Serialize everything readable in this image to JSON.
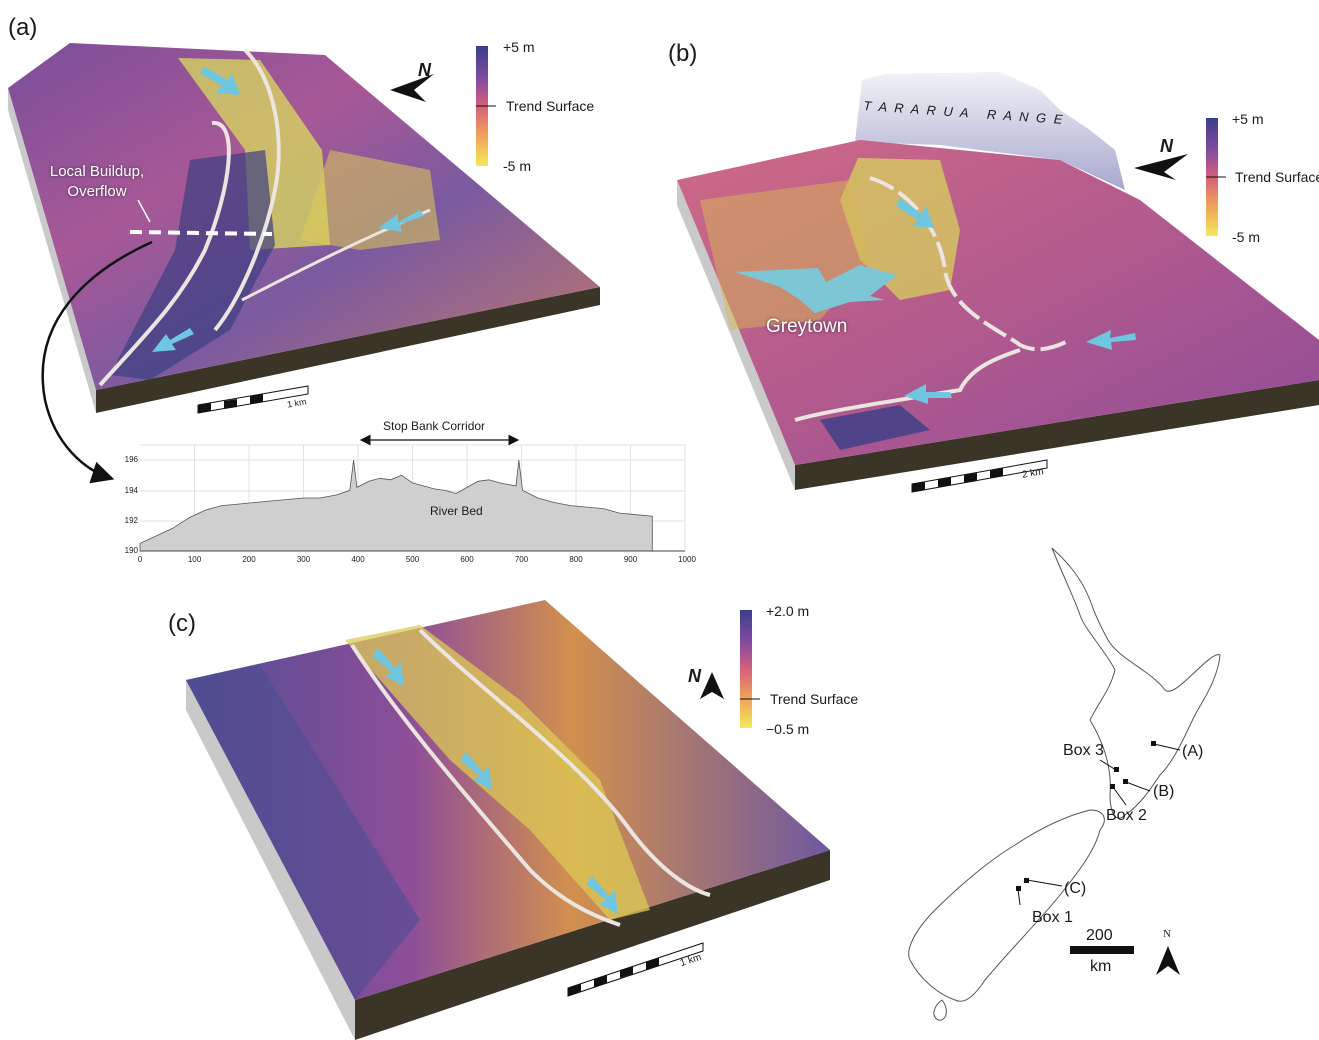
{
  "figure": {
    "panels": [
      {
        "label": "(a)",
        "annotation": [
          "Local Buildup,",
          "Overflow"
        ],
        "colorbar": {
          "top": "+5 m",
          "middle": "Trend Surface",
          "bottom": "-5 m"
        },
        "scale": "1 km",
        "north": "N",
        "profile": {
          "title": "Stop Bank Corridor",
          "label": "River Bed",
          "x_ticks": [
            "0",
            "100",
            "200",
            "300",
            "400",
            "500",
            "600",
            "700",
            "800",
            "900",
            "1000"
          ],
          "y_ticks": [
            "190",
            "192",
            "194",
            "196"
          ]
        }
      },
      {
        "label": "(b)",
        "range_name": "T A R A R U A   R A N G E",
        "town": "Greytown",
        "colorbar": {
          "top": "+5 m",
          "middle": "Trend Surface",
          "bottom": "-5 m"
        },
        "scale": "2 km",
        "north": "N"
      },
      {
        "label": "(c)",
        "colorbar": {
          "top": "+2.0 m",
          "middle": "Trend Surface",
          "bottom": "−0.5 m"
        },
        "scale": "1 km",
        "north": "N"
      }
    ],
    "nz_map": {
      "labels": {
        "a": "(A)",
        "b": "(B)",
        "c": "(C)",
        "box1": "Box 1",
        "box2": "Box 2",
        "box3": "Box 3"
      },
      "scale_value": "200",
      "scale_unit": "km",
      "north": "N"
    }
  }
}
